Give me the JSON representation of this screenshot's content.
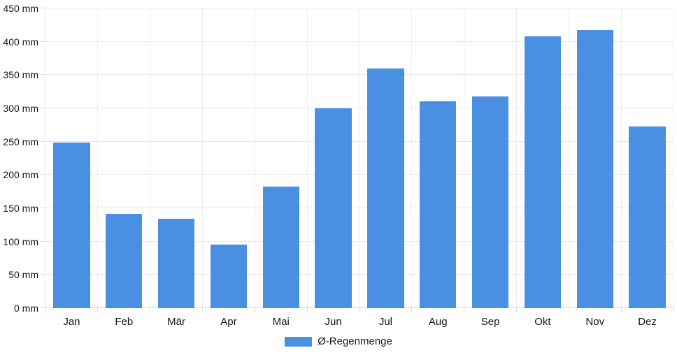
{
  "chart_data": {
    "type": "bar",
    "title": "",
    "xlabel": "",
    "ylabel": "",
    "categories": [
      "Jan",
      "Feb",
      "Mär",
      "Apr",
      "Mai",
      "Jun",
      "Jul",
      "Aug",
      "Sep",
      "Okt",
      "Nov",
      "Dez"
    ],
    "series": [
      {
        "name": "Ø-Regenmenge",
        "values": [
          249,
          142,
          134,
          95,
          183,
          300,
          360,
          310,
          318,
          408,
          418,
          273
        ]
      }
    ],
    "ylim": [
      0,
      450
    ],
    "y_tick_step": 50,
    "y_tick_labels": [
      "0 mm",
      "50 mm",
      "100 mm",
      "150 mm",
      "200 mm",
      "250 mm",
      "300 mm",
      "350 mm",
      "400 mm",
      "450 mm"
    ],
    "grid": true,
    "legend_position": "bottom",
    "bar_color": "#4a90e2",
    "unit": "mm"
  },
  "legend": {
    "label": "Ø-Regenmenge",
    "swatch_color": "#4a90e2"
  }
}
